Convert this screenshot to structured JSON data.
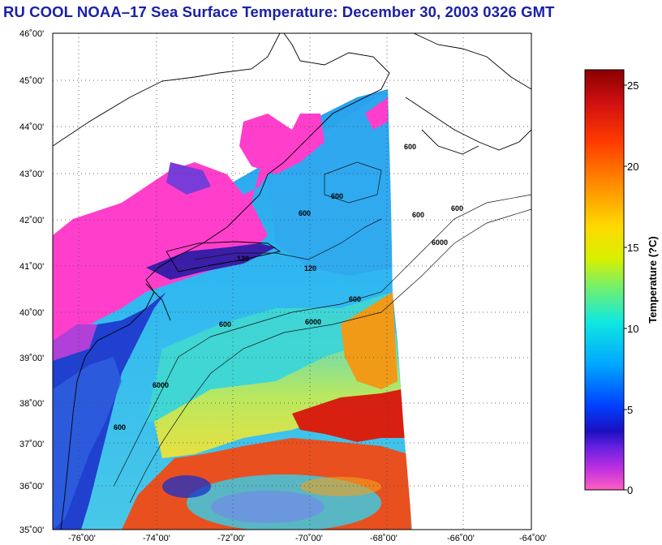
{
  "title": "RU COOL  NOAA–17  Sea Surface Temperature:  December 30, 2003 0326 GMT",
  "map": {
    "lat_labels": [
      "46˚00'",
      "45˚00'",
      "44˚00'",
      "43˚00'",
      "42˚00'",
      "41˚00'",
      "40˚00'",
      "39˚00'",
      "38˚00'",
      "37˚00'",
      "36˚00'",
      "35˚00'"
    ],
    "lon_labels": [
      "-76˚00'",
      "-74˚00'",
      "-72˚00'",
      "-70˚00'",
      "-68˚00'",
      "-66˚00'",
      "-64˚00'"
    ],
    "lat_range": [
      35,
      46
    ],
    "lon_range": [
      -77,
      -64.1
    ],
    "isobath_labels": [
      "600",
      "600",
      "600",
      "600",
      "600",
      "600",
      "6000",
      "6000",
      "600",
      "6000",
      "600",
      "120",
      "120"
    ],
    "colors": {
      "land_mask": "#ff40c8",
      "warm": "#d81010",
      "cold": "#1a20a8"
    }
  },
  "colorbar": {
    "title": "Temperature (?C)",
    "ticks": [
      "0",
      "5",
      "10",
      "15",
      "20",
      "25"
    ],
    "range": [
      0,
      26
    ]
  }
}
